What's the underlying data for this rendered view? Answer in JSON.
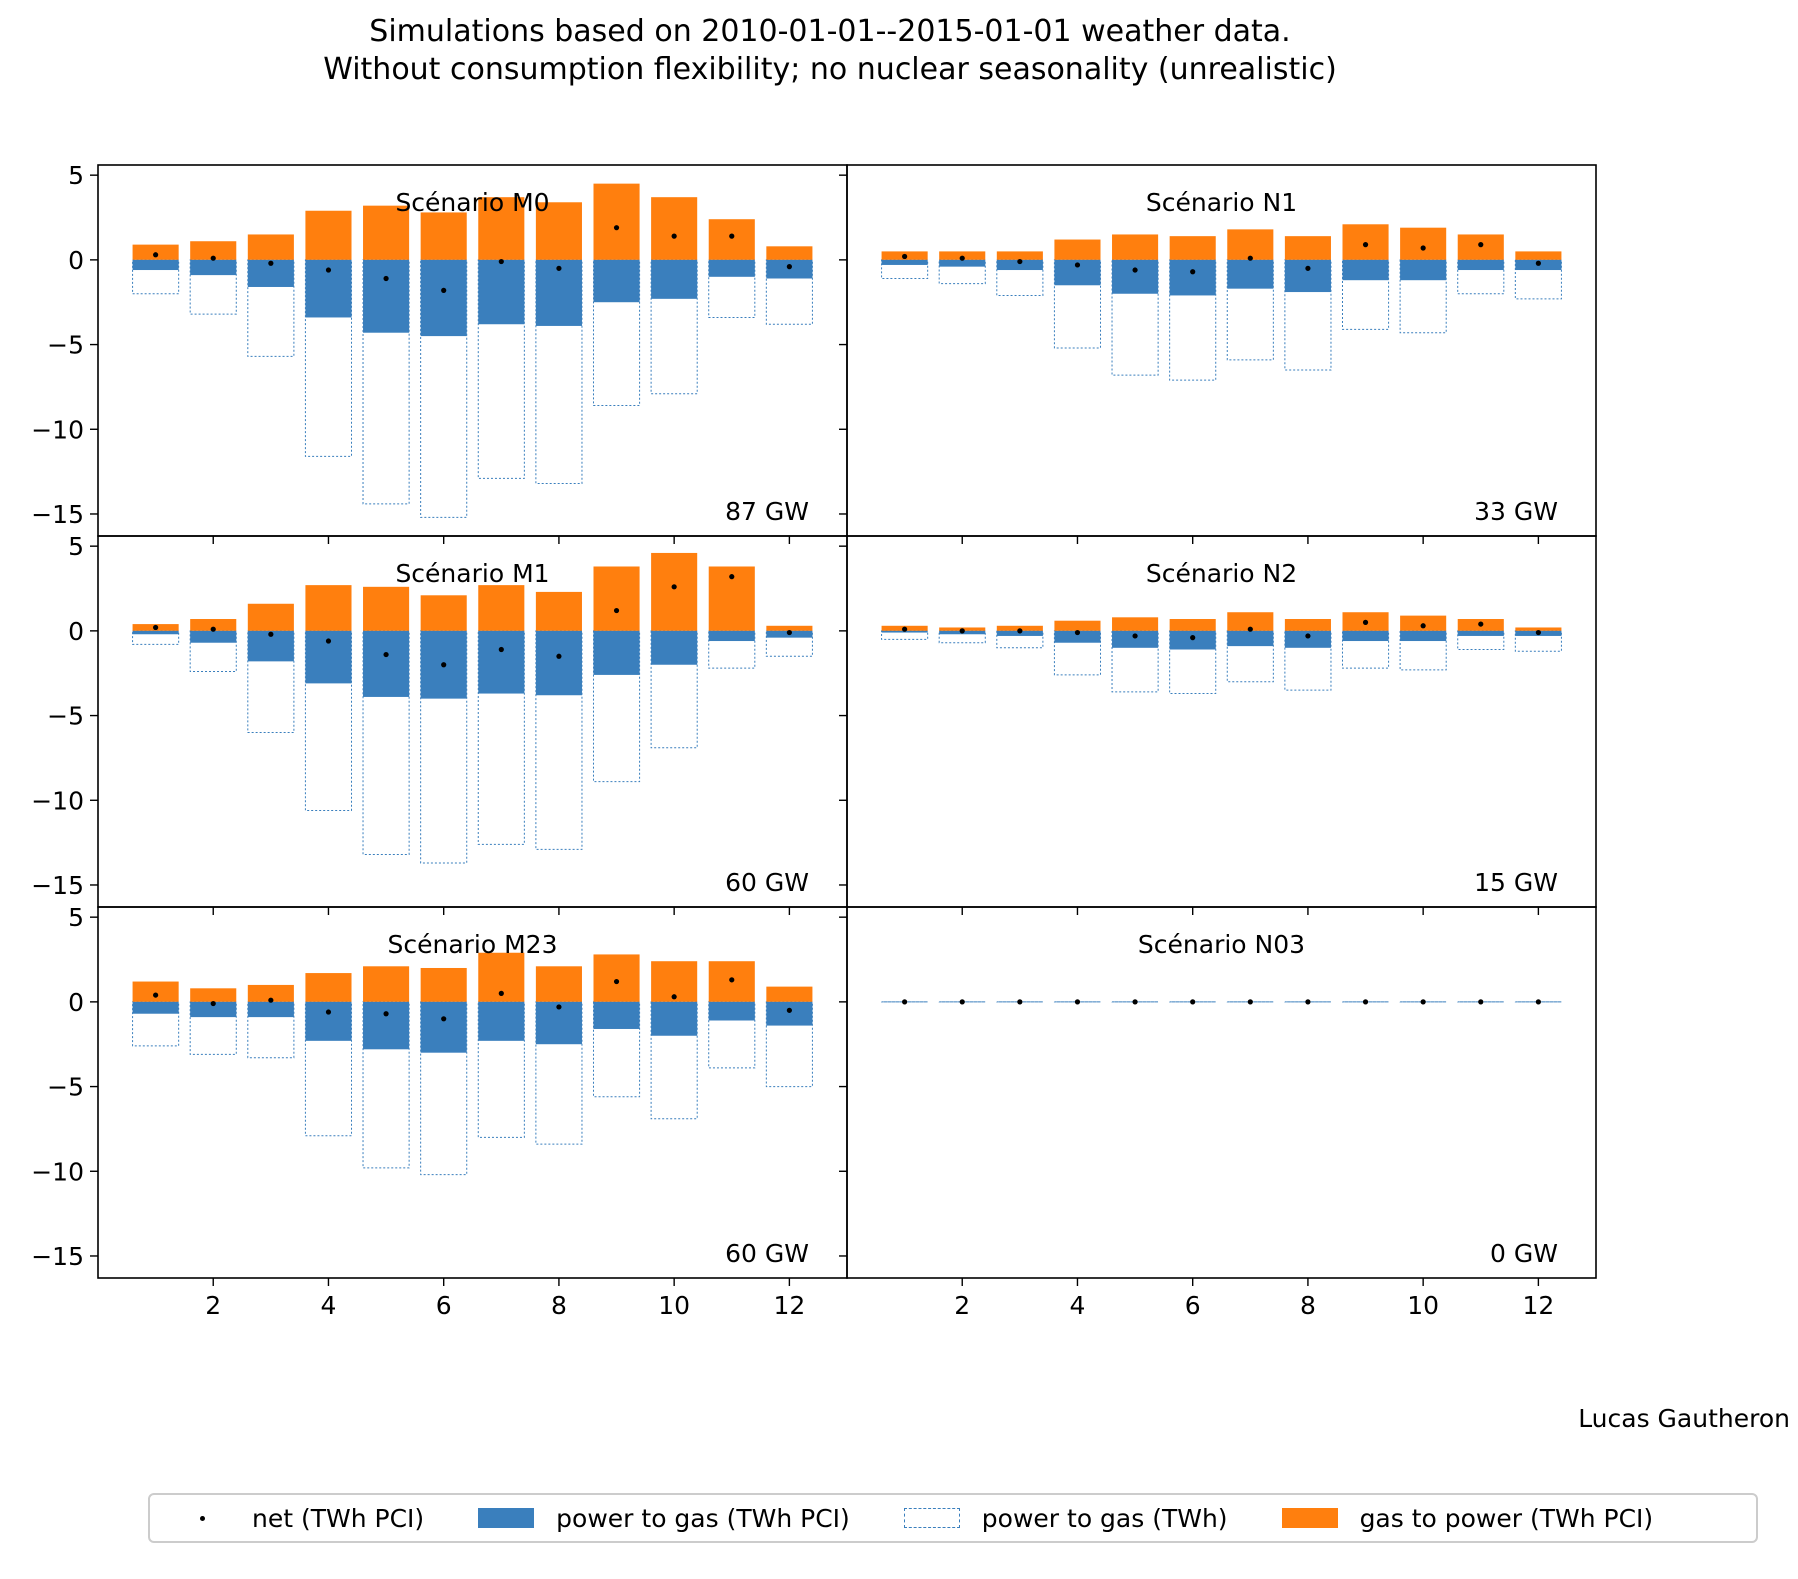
{
  "figure": {
    "title_line1": "Simulations based on 2010-01-01--2015-01-01 weather data.",
    "title_line2": "Without consumption flexibility; no nuclear seasonality (unrealistic)",
    "author": "Lucas Gautheron"
  },
  "legend": {
    "items": [
      {
        "label": "net (TWh PCI)"
      },
      {
        "label": "power to gas (TWh PCI)"
      },
      {
        "label": "power to gas (TWh)"
      },
      {
        "label": "gas to power (TWh PCI)"
      }
    ]
  },
  "colors": {
    "power_to_gas": "#3a7fbd",
    "gas_to_power": "#ff7f0e",
    "net": "#000000"
  },
  "chart_data": {
    "type": "bar",
    "layout": "3x2 grid of subplots, shared axes",
    "x": [
      1,
      2,
      3,
      4,
      5,
      6,
      7,
      8,
      9,
      10,
      11,
      12
    ],
    "xticks": [
      2,
      4,
      6,
      8,
      10,
      12
    ],
    "yticks": [
      5,
      0,
      -5,
      -10,
      -15
    ],
    "ylim": [
      -16.3,
      5.6
    ],
    "xlim": [
      0.0,
      13.0
    ],
    "grid": false,
    "legend_position": "bottom",
    "panels": [
      {
        "title": "Scénario M0",
        "capacity": "87 GW",
        "gas_to_power": [
          0.9,
          1.1,
          1.5,
          2.9,
          3.2,
          2.8,
          3.7,
          3.4,
          4.5,
          3.7,
          2.4,
          0.8
        ],
        "power_to_gas_pci": [
          -0.6,
          -0.9,
          -1.6,
          -3.4,
          -4.3,
          -4.5,
          -3.8,
          -3.9,
          -2.5,
          -2.3,
          -1.0,
          -1.1
        ],
        "power_to_gas_twh": [
          -2.0,
          -3.2,
          -5.7,
          -11.6,
          -14.4,
          -15.2,
          -12.9,
          -13.2,
          -8.6,
          -7.9,
          -3.4,
          -3.8
        ],
        "net": [
          0.3,
          0.1,
          -0.2,
          -0.6,
          -1.1,
          -1.8,
          -0.1,
          -0.5,
          1.9,
          1.4,
          1.4,
          -0.4
        ]
      },
      {
        "title": "Scénario N1",
        "capacity": "33 GW",
        "gas_to_power": [
          0.5,
          0.5,
          0.5,
          1.2,
          1.5,
          1.4,
          1.8,
          1.4,
          2.1,
          1.9,
          1.5,
          0.5
        ],
        "power_to_gas_pci": [
          -0.3,
          -0.4,
          -0.6,
          -1.5,
          -2.0,
          -2.1,
          -1.7,
          -1.9,
          -1.2,
          -1.2,
          -0.6,
          -0.6
        ],
        "power_to_gas_twh": [
          -1.1,
          -1.4,
          -2.1,
          -5.2,
          -6.8,
          -7.1,
          -5.9,
          -6.5,
          -4.1,
          -4.3,
          -2.0,
          -2.3
        ],
        "net": [
          0.2,
          0.1,
          -0.1,
          -0.3,
          -0.6,
          -0.7,
          0.1,
          -0.5,
          0.9,
          0.7,
          0.9,
          -0.2
        ]
      },
      {
        "title": "Scénario M1",
        "capacity": "60 GW",
        "gas_to_power": [
          0.4,
          0.7,
          1.6,
          2.7,
          2.6,
          2.1,
          2.7,
          2.3,
          3.8,
          4.6,
          3.8,
          0.3
        ],
        "power_to_gas_pci": [
          -0.2,
          -0.7,
          -1.8,
          -3.1,
          -3.9,
          -4.0,
          -3.7,
          -3.8,
          -2.6,
          -2.0,
          -0.6,
          -0.4
        ],
        "power_to_gas_twh": [
          -0.8,
          -2.4,
          -6.0,
          -10.6,
          -13.2,
          -13.7,
          -12.6,
          -12.9,
          -8.9,
          -6.9,
          -2.2,
          -1.5
        ],
        "net": [
          0.2,
          0.1,
          -0.2,
          -0.6,
          -1.4,
          -2.0,
          -1.1,
          -1.5,
          1.2,
          2.6,
          3.2,
          -0.1
        ]
      },
      {
        "title": "Scénario N2",
        "capacity": "15 GW",
        "gas_to_power": [
          0.3,
          0.2,
          0.3,
          0.6,
          0.8,
          0.7,
          1.1,
          0.7,
          1.1,
          0.9,
          0.7,
          0.2
        ],
        "power_to_gas_pci": [
          -0.1,
          -0.2,
          -0.3,
          -0.7,
          -1.0,
          -1.1,
          -0.9,
          -1.0,
          -0.6,
          -0.6,
          -0.3,
          -0.3
        ],
        "power_to_gas_twh": [
          -0.5,
          -0.7,
          -1.0,
          -2.6,
          -3.6,
          -3.7,
          -3.0,
          -3.5,
          -2.2,
          -2.3,
          -1.1,
          -1.2
        ],
        "net": [
          0.1,
          0.0,
          0.0,
          -0.1,
          -0.3,
          -0.4,
          0.1,
          -0.3,
          0.5,
          0.3,
          0.4,
          -0.1
        ]
      },
      {
        "title": "Scénario M23",
        "capacity": "60 GW",
        "gas_to_power": [
          1.2,
          0.8,
          1.0,
          1.7,
          2.1,
          2.0,
          2.9,
          2.1,
          2.8,
          2.4,
          2.4,
          0.9
        ],
        "power_to_gas_pci": [
          -0.7,
          -0.9,
          -0.9,
          -2.3,
          -2.8,
          -3.0,
          -2.3,
          -2.5,
          -1.6,
          -2.0,
          -1.1,
          -1.4
        ],
        "power_to_gas_twh": [
          -2.6,
          -3.1,
          -3.3,
          -7.9,
          -9.8,
          -10.2,
          -8.0,
          -8.4,
          -5.6,
          -6.9,
          -3.9,
          -5.0
        ],
        "net": [
          0.4,
          -0.1,
          0.1,
          -0.6,
          -0.7,
          -1.0,
          0.5,
          -0.3,
          1.2,
          0.3,
          1.3,
          -0.5
        ]
      },
      {
        "title": "Scénario N03",
        "capacity": "0 GW",
        "gas_to_power": [
          0,
          0,
          0,
          0,
          0,
          0,
          0,
          0,
          0,
          0,
          0,
          0
        ],
        "power_to_gas_pci": [
          0,
          0,
          0,
          0,
          0,
          0,
          0,
          0,
          0,
          0,
          0,
          0
        ],
        "power_to_gas_twh": [
          0,
          0,
          0,
          0,
          0,
          0,
          0,
          0,
          0,
          0,
          0,
          0
        ],
        "net": [
          0,
          0,
          0,
          0,
          0,
          0,
          0,
          0,
          0,
          0,
          0,
          0
        ]
      }
    ]
  }
}
